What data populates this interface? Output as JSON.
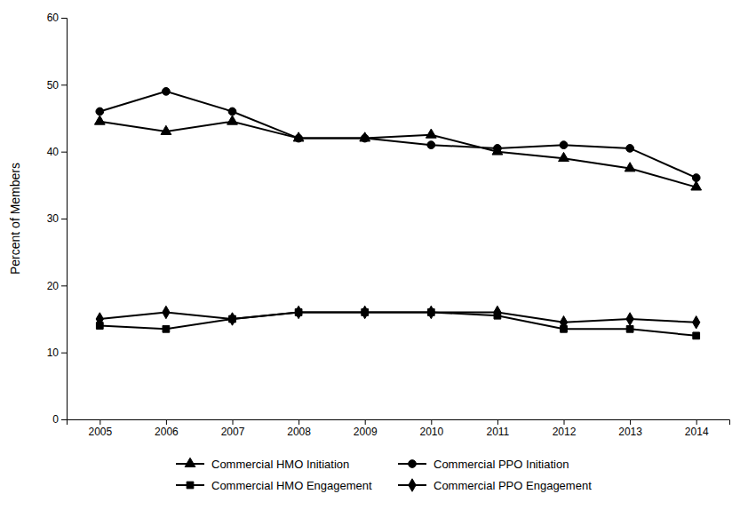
{
  "chart_data": {
    "type": "line",
    "ylabel": "Percent of Members",
    "x": [
      2005,
      2006,
      2007,
      2008,
      2009,
      2010,
      2011,
      2012,
      2013,
      2014
    ],
    "series": [
      {
        "name": "Commercial HMO Initiation",
        "color": "#000000",
        "marker": "triangle",
        "values": [
          44.5,
          43.0,
          44.5,
          42.0,
          42.0,
          42.5,
          40.0,
          39.0,
          37.5,
          34.7
        ]
      },
      {
        "name": "Commercial PPO Initiation",
        "color": "#000000",
        "marker": "circle",
        "values": [
          46.0,
          49.0,
          46.0,
          42.0,
          42.0,
          41.0,
          40.5,
          41.0,
          40.5,
          36.1
        ]
      },
      {
        "name": "Commercial HMO Engagement",
        "color": "#000000",
        "marker": "square",
        "values": [
          14.0,
          13.5,
          15.0,
          16.0,
          16.0,
          16.0,
          15.5,
          13.5,
          13.5,
          12.5
        ]
      },
      {
        "name": "Commercial PPO Engagement",
        "color": "#000000",
        "marker": "diamond",
        "values": [
          15.0,
          16.0,
          15.0,
          16.0,
          16.0,
          16.0,
          16.0,
          14.5,
          15.0,
          14.5
        ]
      }
    ],
    "xlim": [
      2004.5,
      2014.5
    ],
    "xticks": [
      2005,
      2006,
      2007,
      2008,
      2009,
      2010,
      2011,
      2012,
      2013,
      2014
    ],
    "ylim": [
      0,
      60
    ],
    "yticks": [
      0,
      10,
      20,
      30,
      40,
      50,
      60
    ],
    "grid": false,
    "legend": "bottom"
  }
}
